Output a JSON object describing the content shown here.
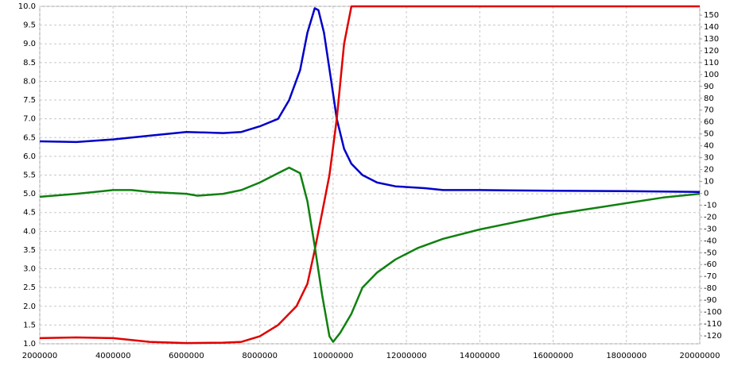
{
  "chart_data": {
    "type": "line",
    "xlim": [
      2000000,
      20000000
    ],
    "xticks": [
      2000000,
      4000000,
      6000000,
      8000000,
      10000000,
      12000000,
      14000000,
      16000000,
      18000000,
      20000000
    ],
    "ylim": [
      1,
      10
    ],
    "yticks": [
      {
        "value": 1,
        "label": "1.0"
      },
      1.5,
      {
        "value": 2,
        "label": "2.0"
      },
      2.5,
      {
        "value": 3,
        "label": "3.0"
      },
      3.5,
      {
        "value": 4,
        "label": "4.0"
      },
      4.5,
      {
        "value": 5,
        "label": "5.0"
      },
      5.5,
      {
        "value": 6,
        "label": "6.0"
      },
      6.5,
      {
        "value": 7,
        "label": "7.0"
      },
      7.5,
      {
        "value": 8,
        "label": "8.0"
      },
      8.5,
      {
        "value": 9,
        "label": "9.0"
      },
      9.5,
      {
        "value": 10,
        "label": "10.0"
      }
    ],
    "y2lim": [
      -126.7,
      157.4
    ],
    "y2ticks": [
      -120,
      -110,
      -100,
      -90,
      -80,
      -70,
      -60,
      -50,
      -40,
      -30,
      -20,
      -10,
      0,
      10,
      20,
      30,
      40,
      50,
      60,
      70,
      80,
      90,
      100,
      110,
      120,
      130,
      140,
      150
    ],
    "grid": true,
    "series": [
      {
        "color": "#0000c8",
        "x": [
          2000000,
          3000000,
          4000000,
          5000000,
          6000000,
          7000000,
          7500000,
          8000000,
          8500000,
          8800000,
          9100000,
          9300000,
          9500000,
          9600000,
          9750000,
          9950000,
          10100000,
          10300000,
          10500000,
          10800000,
          11200000,
          11700000,
          12500000,
          13000000,
          14000000,
          16000000,
          18000000,
          20000000
        ],
        "values": [
          6.4,
          6.38,
          6.45,
          6.55,
          6.65,
          6.62,
          6.65,
          6.8,
          7.0,
          7.5,
          8.3,
          9.3,
          9.95,
          9.9,
          9.3,
          8.0,
          7.0,
          6.2,
          5.8,
          5.5,
          5.3,
          5.2,
          5.15,
          5.1,
          5.1,
          5.08,
          5.07,
          5.05
        ]
      },
      {
        "color": "#e00000",
        "x": [
          2000000,
          3000000,
          4000000,
          5000000,
          6000000,
          7000000,
          7500000,
          8000000,
          8500000,
          9000000,
          9300000,
          9500000,
          9700000,
          9900000,
          10100000,
          10300000,
          10500000,
          12000000,
          14000000,
          16000000,
          18000000,
          20000000
        ],
        "values": [
          1.15,
          1.17,
          1.15,
          1.05,
          1.02,
          1.03,
          1.05,
          1.2,
          1.5,
          2.0,
          2.6,
          3.5,
          4.5,
          5.5,
          7.0,
          9.0,
          10,
          10,
          10,
          10,
          10,
          10
        ]
      },
      {
        "color": "#108010",
        "x": [
          2000000,
          3000000,
          4000000,
          4500000,
          5000000,
          6000000,
          6300000,
          7000000,
          7500000,
          8000000,
          8500000,
          8800000,
          9100000,
          9300000,
          9500000,
          9700000,
          9900000,
          10000000,
          10200000,
          10500000,
          10800000,
          11200000,
          11700000,
          12300000,
          13000000,
          14000000,
          15000000,
          16000000,
          17000000,
          18000000,
          19000000,
          20000000
        ],
        "values": [
          4.92,
          5.0,
          5.1,
          5.1,
          5.05,
          5.0,
          4.95,
          5.0,
          5.1,
          5.3,
          5.55,
          5.7,
          5.55,
          4.8,
          3.6,
          2.3,
          1.2,
          1.05,
          1.3,
          1.8,
          2.5,
          2.9,
          3.25,
          3.55,
          3.8,
          4.05,
          4.25,
          4.45,
          4.6,
          4.75,
          4.9,
          5.0
        ]
      }
    ]
  }
}
